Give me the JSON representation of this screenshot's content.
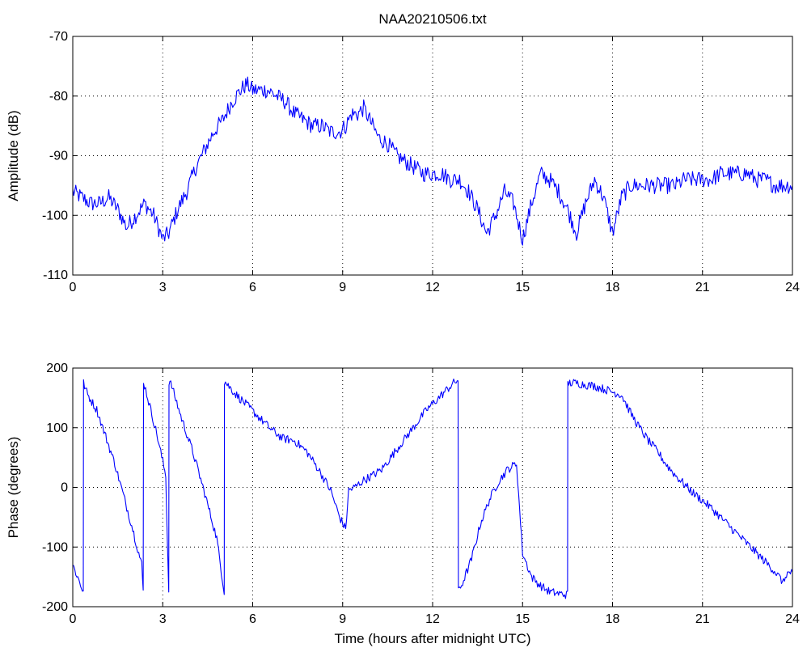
{
  "chart_data": [
    {
      "type": "line",
      "title": "NAA20210506.txt",
      "xlabel": "",
      "ylabel": "Amplitude (dB)",
      "xlim": [
        0,
        24
      ],
      "ylim": [
        -110,
        -70
      ],
      "xticks": [
        0,
        3,
        6,
        9,
        12,
        15,
        18,
        21,
        24
      ],
      "yticks": [
        -110,
        -100,
        -90,
        -80,
        -70
      ],
      "grid": true,
      "line_color": "#0000ff",
      "series": [
        {
          "x": [
            0,
            0.3,
            0.6,
            0.9,
            1.2,
            1.5,
            1.8,
            2.1,
            2.4,
            2.7,
            3.0,
            3.2,
            3.5,
            3.8,
            4.1,
            4.4,
            4.7,
            5.0,
            5.3,
            5.6,
            5.8,
            6.0,
            6.2,
            6.5,
            6.8,
            7.1,
            7.4,
            7.7,
            8.0,
            8.3,
            8.6,
            8.9,
            9.1,
            9.3,
            9.5,
            9.7,
            9.9,
            10.2,
            10.5,
            10.8,
            11.1,
            11.4,
            11.7,
            12.0,
            12.3,
            12.6,
            12.9,
            13.2,
            13.5,
            13.8,
            14.1,
            14.4,
            14.7,
            15.0,
            15.3,
            15.6,
            15.9,
            16.2,
            16.5,
            16.8,
            17.1,
            17.4,
            17.7,
            18.0,
            18.3,
            18.6,
            18.9,
            19.2,
            19.5,
            19.8,
            20.1,
            20.4,
            20.7,
            21.0,
            21.3,
            21.6,
            21.9,
            22.2,
            22.5,
            22.8,
            23.1,
            23.4,
            23.7,
            24.0
          ],
          "y": [
            -96,
            -97,
            -98,
            -98,
            -97,
            -99,
            -102,
            -100,
            -98,
            -100,
            -104,
            -103,
            -99,
            -96,
            -92,
            -89,
            -86,
            -84,
            -81,
            -79,
            -78,
            -79,
            -79,
            -79,
            -80,
            -81,
            -83,
            -84,
            -85,
            -85,
            -86,
            -86,
            -85,
            -83,
            -83,
            -82,
            -84,
            -87,
            -88,
            -90,
            -91,
            -92,
            -93,
            -93,
            -93,
            -94,
            -94,
            -96,
            -99,
            -103,
            -100,
            -96,
            -98,
            -104,
            -98,
            -93,
            -94,
            -96,
            -99,
            -103,
            -98,
            -94,
            -97,
            -103,
            -97,
            -95,
            -95,
            -95,
            -95,
            -95,
            -95,
            -94,
            -94,
            -94,
            -94,
            -93,
            -93,
            -93,
            -93,
            -94,
            -94,
            -95,
            -95,
            -95
          ]
        }
      ]
    },
    {
      "type": "line",
      "title": "",
      "xlabel": "Time (hours after midnight UTC)",
      "ylabel": "Phase (degrees)",
      "xlim": [
        0,
        24
      ],
      "ylim": [
        -200,
        200
      ],
      "xticks": [
        0,
        3,
        6,
        9,
        12,
        15,
        18,
        21,
        24
      ],
      "yticks": [
        -200,
        -100,
        0,
        100,
        200
      ],
      "grid": true,
      "line_color": "#0000ff",
      "series": [
        {
          "x": [
            0,
            0.2,
            0.35,
            0.36,
            0.5,
            0.8,
            1.1,
            1.4,
            1.7,
            2.0,
            2.3,
            2.35,
            2.36,
            2.5,
            2.8,
            3.1,
            3.2,
            3.21,
            3.3,
            3.6,
            4.0,
            4.4,
            4.8,
            5.05,
            5.06,
            5.4,
            5.8,
            6.2,
            6.6,
            7.0,
            7.4,
            7.8,
            8.2,
            8.6,
            8.9,
            9.1,
            9.2,
            9.4,
            9.7,
            10.0,
            10.3,
            10.6,
            10.9,
            11.2,
            11.5,
            11.8,
            12.1,
            12.4,
            12.7,
            12.85,
            12.86,
            13.0,
            13.3,
            13.6,
            13.9,
            14.2,
            14.5,
            14.8,
            15.0,
            15.3,
            15.6,
            15.9,
            16.2,
            16.5,
            16.51,
            16.8,
            17.1,
            17.4,
            17.7,
            18.0,
            18.3,
            18.6,
            18.9,
            19.2,
            19.5,
            19.8,
            20.1,
            20.4,
            20.7,
            21.0,
            21.3,
            21.6,
            21.9,
            22.2,
            22.5,
            22.8,
            23.1,
            23.4,
            23.7,
            23.8,
            24.0
          ],
          "y": [
            -130,
            -155,
            -175,
            175,
            155,
            130,
            85,
            40,
            -15,
            -70,
            -130,
            -175,
            178,
            150,
            90,
            20,
            -175,
            178,
            170,
            120,
            60,
            -10,
            -85,
            -175,
            178,
            158,
            138,
            118,
            98,
            82,
            78,
            60,
            30,
            -5,
            -50,
            -70,
            -5,
            0,
            12,
            20,
            30,
            50,
            70,
            90,
            110,
            130,
            145,
            160,
            175,
            180,
            -175,
            -160,
            -120,
            -60,
            -20,
            10,
            30,
            40,
            -110,
            -150,
            -165,
            -175,
            -178,
            -180,
            175,
            175,
            172,
            170,
            165,
            160,
            155,
            125,
            100,
            78,
            60,
            38,
            20,
            5,
            -10,
            -22,
            -35,
            -50,
            -65,
            -80,
            -95,
            -110,
            -125,
            -140,
            -160,
            -145,
            -142
          ]
        }
      ]
    }
  ]
}
